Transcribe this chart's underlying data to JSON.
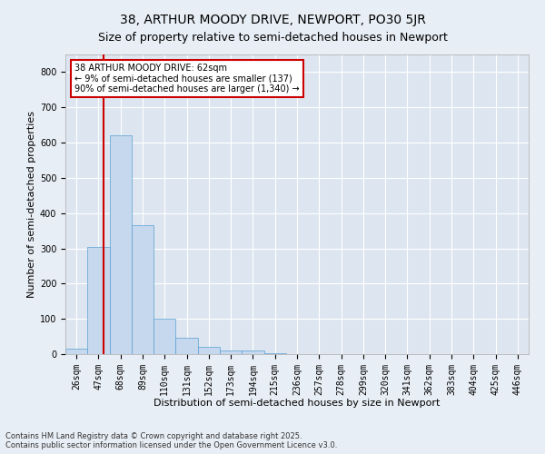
{
  "title": "38, ARTHUR MOODY DRIVE, NEWPORT, PO30 5JR",
  "subtitle": "Size of property relative to semi-detached houses in Newport",
  "xlabel": "Distribution of semi-detached houses by size in Newport",
  "ylabel": "Number of semi-detached properties",
  "bar_categories": [
    "26sqm",
    "47sqm",
    "68sqm",
    "89sqm",
    "110sqm",
    "131sqm",
    "152sqm",
    "173sqm",
    "194sqm",
    "215sqm",
    "236sqm",
    "257sqm",
    "278sqm",
    "299sqm",
    "320sqm",
    "341sqm",
    "362sqm",
    "383sqm",
    "404sqm",
    "425sqm",
    "446sqm"
  ],
  "bar_values": [
    15,
    305,
    620,
    365,
    100,
    47,
    20,
    10,
    10,
    2,
    0,
    0,
    0,
    0,
    0,
    0,
    0,
    0,
    0,
    0,
    0
  ],
  "bar_color": "#c5d8ed",
  "bar_edgecolor": "#5a9fd4",
  "property_line_color": "#cc0000",
  "annotation_text": "38 ARTHUR MOODY DRIVE: 62sqm\n← 9% of semi-detached houses are smaller (137)\n90% of semi-detached houses are larger (1,340) →",
  "annotation_box_color": "#cc0000",
  "ylim": [
    0,
    850
  ],
  "yticks": [
    0,
    100,
    200,
    300,
    400,
    500,
    600,
    700,
    800
  ],
  "background_color": "#e8eef5",
  "plot_bg_color": "#dde6f0",
  "grid_color": "#ffffff",
  "footnote": "Contains HM Land Registry data © Crown copyright and database right 2025.\nContains public sector information licensed under the Open Government Licence v3.0.",
  "title_fontsize": 10,
  "subtitle_fontsize": 9,
  "axis_label_fontsize": 8,
  "tick_fontsize": 7,
  "annotation_fontsize": 7
}
